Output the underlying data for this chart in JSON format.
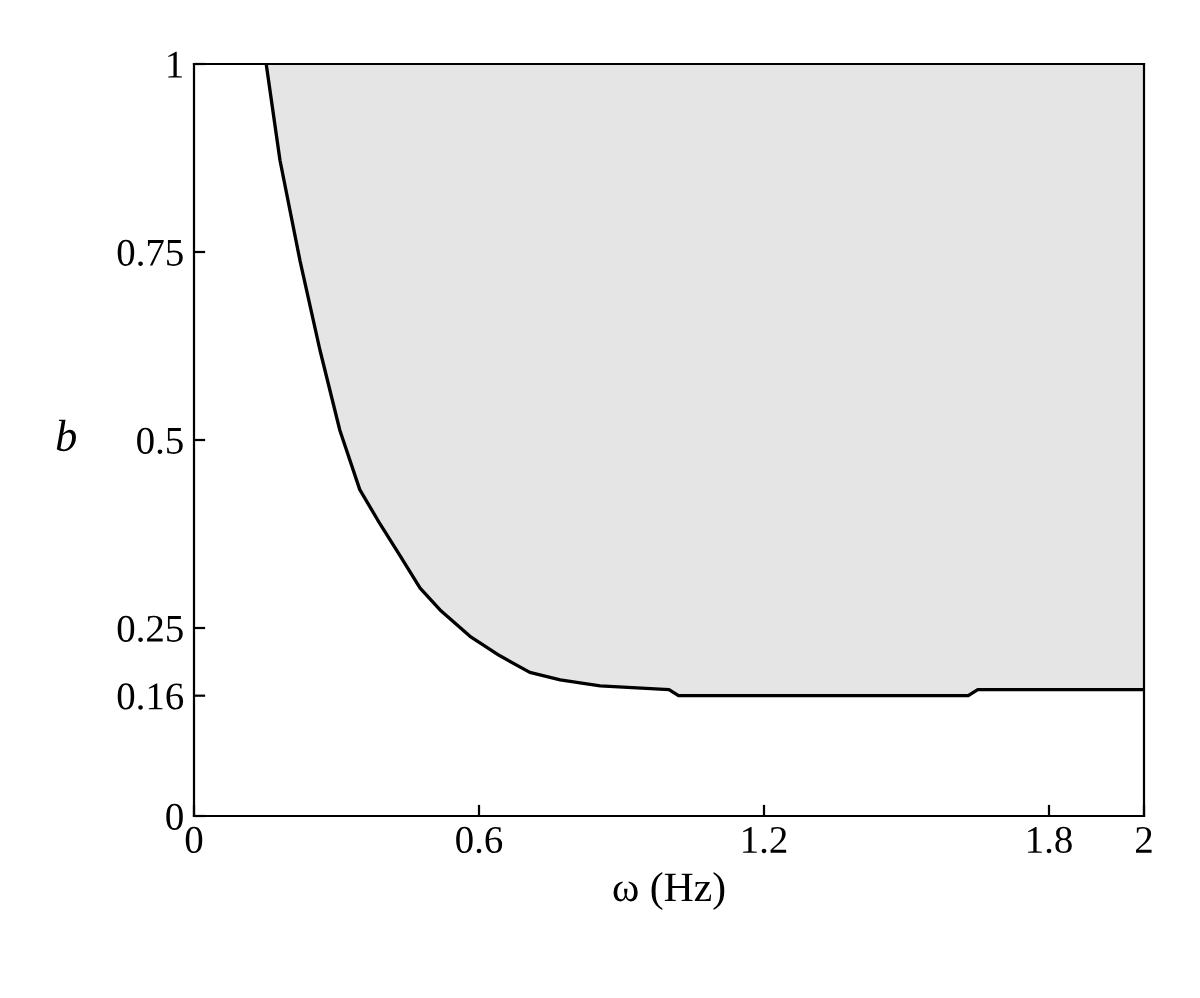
{
  "chart_data": {
    "type": "line",
    "xlabel": "ω (Hz)",
    "ylabel": "b",
    "x": [
      0.152,
      0.181,
      0.223,
      0.265,
      0.307,
      0.349,
      0.392,
      0.434,
      0.476,
      0.518,
      0.581,
      0.644,
      0.707,
      0.771,
      0.855,
      1.0,
      1.02,
      1.63,
      1.65,
      2.0
    ],
    "series": [
      {
        "color": "#000000",
        "values": [
          1,
          0.872,
          0.739,
          0.62,
          0.513,
          0.434,
          0.388,
          0.346,
          0.303,
          0.274,
          0.239,
          0.213,
          0.191,
          0.181,
          0.173,
          0.168,
          0.16,
          0.16,
          0.168,
          0.168
        ],
        "lower": [
          1,
          0.872,
          0.739,
          0.62,
          0.513,
          0.434,
          0.388,
          0.346,
          0.303,
          0.274,
          0.239,
          0.213,
          0.191,
          0.181,
          0.173,
          0.168,
          0.16,
          0.16,
          0.168,
          0.168
        ],
        "upper": [
          1,
          1,
          1,
          1,
          1,
          1,
          1,
          1,
          1,
          1,
          1,
          1,
          1,
          1,
          1,
          1,
          1,
          1,
          1,
          1
        ]
      }
    ],
    "xlim": [
      0,
      2
    ],
    "ylim": [
      0,
      1
    ],
    "xticks": [
      0,
      0.6,
      1.2,
      1.8,
      2
    ],
    "yticks": [
      0,
      0.16,
      0.25,
      0.5,
      0.75,
      1
    ],
    "grid": false,
    "legend": false,
    "line_style": "solid",
    "marker": "none"
  }
}
